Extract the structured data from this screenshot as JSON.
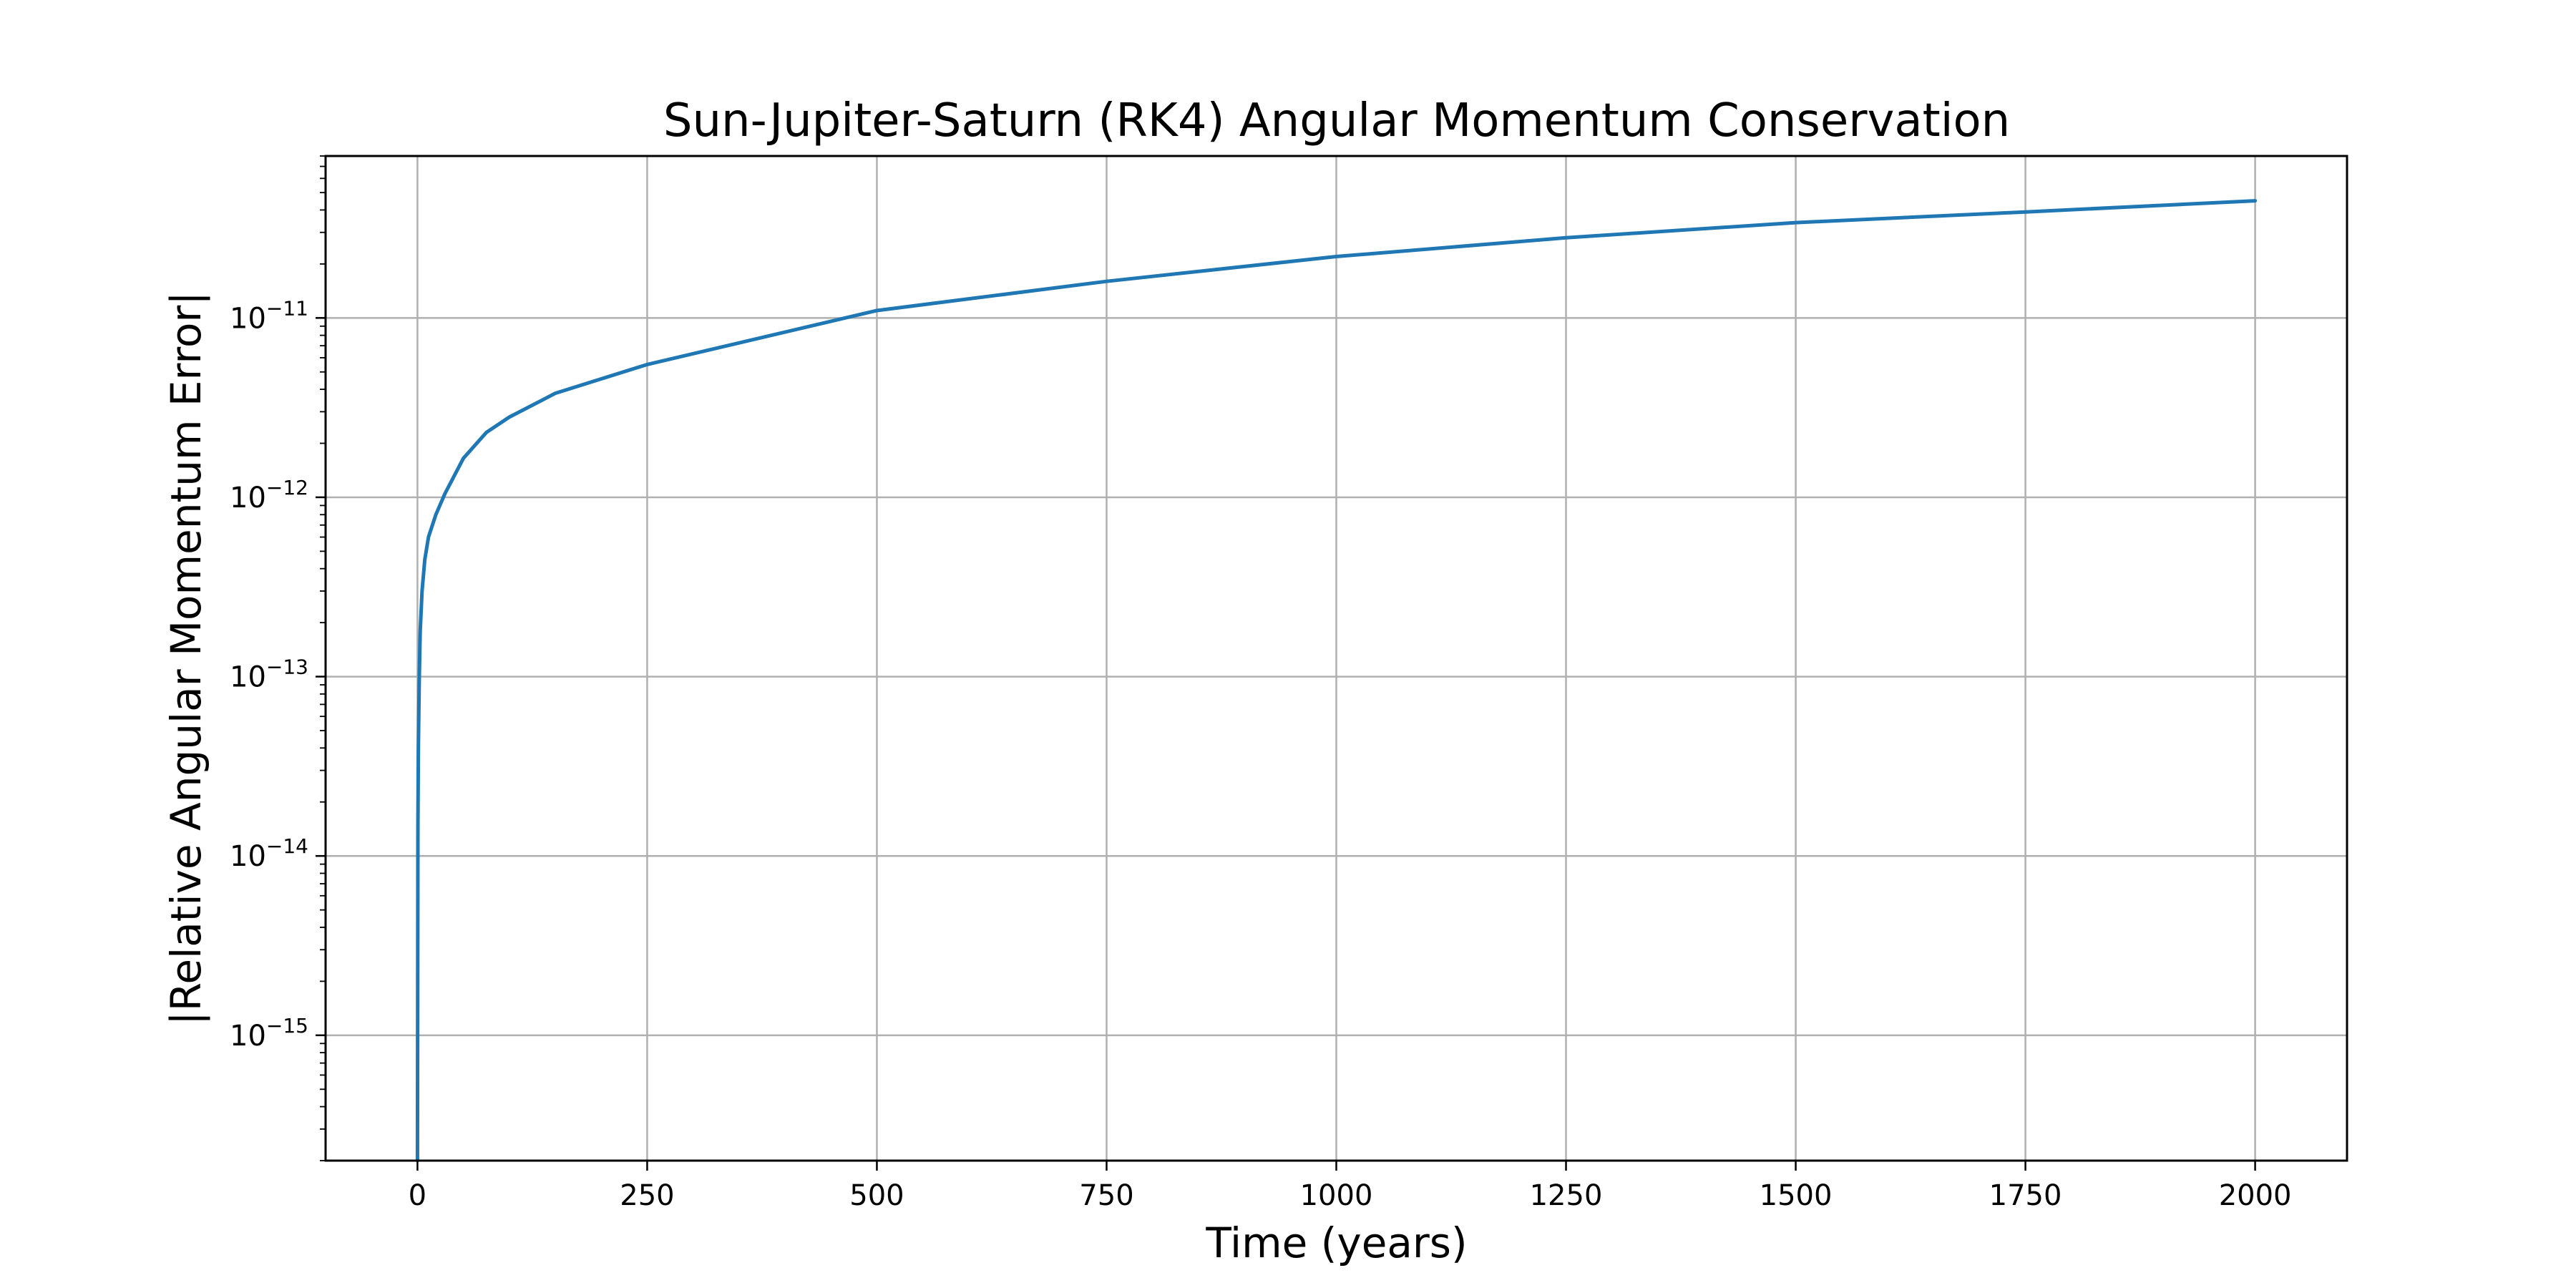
{
  "chart_data": {
    "type": "line",
    "title": "Sun-Jupiter-Saturn (RK4) Angular Momentum Conservation",
    "xlabel": "Time (years)",
    "ylabel": "|Relative Angular Momentum Error|",
    "xlim": [
      -100,
      2100
    ],
    "ylim": [
      2e-16,
      8e-11
    ],
    "yscale": "log",
    "grid": true,
    "x_ticks": [
      0,
      250,
      500,
      750,
      1000,
      1250,
      1500,
      1750,
      2000
    ],
    "y_ticks": [
      {
        "value": 1e-15,
        "base": "10",
        "exp": "−15"
      },
      {
        "value": 1e-14,
        "base": "10",
        "exp": "−14"
      },
      {
        "value": 1e-13,
        "base": "10",
        "exp": "−13"
      },
      {
        "value": 1e-12,
        "base": "10",
        "exp": "−12"
      },
      {
        "value": 1e-11,
        "base": "10",
        "exp": "−11"
      }
    ],
    "series": [
      {
        "color": "#1f77b4",
        "x": [
          0,
          0.5,
          1,
          2,
          3,
          5,
          8,
          12,
          20,
          30,
          50,
          75,
          100,
          150,
          250,
          500,
          750,
          1000,
          1250,
          1500,
          1750,
          2000
        ],
        "y": [
          2e-16,
          1.5e-14,
          4e-14,
          1e-13,
          1.8e-13,
          3e-13,
          4.5e-13,
          6e-13,
          8e-13,
          1.05e-12,
          1.65e-12,
          2.3e-12,
          2.8e-12,
          3.8e-12,
          5.5e-12,
          1.1e-11,
          1.6e-11,
          2.2e-11,
          2.8e-11,
          3.4e-11,
          3.9e-11,
          4.5e-11
        ]
      }
    ]
  }
}
